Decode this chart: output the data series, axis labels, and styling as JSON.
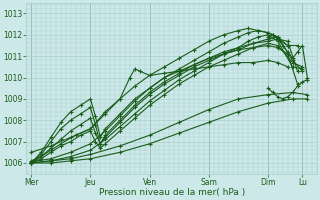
{
  "xlabel": "Pression niveau de la mer( hPa )",
  "ylim": [
    1005.5,
    1013.5
  ],
  "yticks": [
    1006,
    1007,
    1008,
    1009,
    1010,
    1011,
    1012,
    1013
  ],
  "x_days": [
    "Mer",
    "Jeu",
    "Ven",
    "Sam",
    "Dim",
    "Lu"
  ],
  "x_day_positions": [
    0,
    24,
    48,
    72,
    96,
    110
  ],
  "xlim": [
    -2,
    116
  ],
  "bg_color": "#cce8e8",
  "grid_color": "#a8cece",
  "line_color": "#1a5c1a",
  "series": [
    {
      "x": [
        0,
        4,
        8,
        12,
        18,
        24,
        30,
        36,
        42,
        48,
        54,
        60,
        66,
        72,
        78,
        84,
        88,
        92,
        96,
        98,
        100,
        104,
        108
      ],
      "y": [
        1006.1,
        1006.3,
        1006.6,
        1006.9,
        1007.3,
        1007.6,
        1008.4,
        1009.0,
        1009.6,
        1010.1,
        1010.5,
        1010.9,
        1011.3,
        1011.7,
        1012.0,
        1012.2,
        1012.3,
        1012.2,
        1012.1,
        1012.0,
        1011.8,
        1011.5,
        1011.5
      ]
    },
    {
      "x": [
        0,
        8,
        16,
        24,
        30,
        36,
        42,
        48,
        54,
        60,
        66,
        72,
        78,
        84,
        88,
        92,
        96,
        100,
        104
      ],
      "y": [
        1006.05,
        1006.2,
        1006.5,
        1006.9,
        1007.5,
        1008.2,
        1008.9,
        1009.5,
        1010.0,
        1010.4,
        1010.8,
        1011.2,
        1011.6,
        1011.9,
        1012.1,
        1012.2,
        1012.1,
        1011.9,
        1011.5
      ]
    },
    {
      "x": [
        0,
        8,
        16,
        24,
        30,
        36,
        42,
        48,
        54,
        60,
        66,
        72,
        78,
        84,
        88,
        92,
        96,
        100,
        106,
        110
      ],
      "y": [
        1006.0,
        1006.1,
        1006.3,
        1006.6,
        1007.1,
        1007.7,
        1008.3,
        1008.9,
        1009.4,
        1009.9,
        1010.3,
        1010.7,
        1011.1,
        1011.4,
        1011.7,
        1011.9,
        1012.0,
        1011.7,
        1010.5,
        1010.4
      ]
    },
    {
      "x": [
        0,
        4,
        8,
        12,
        16,
        20,
        24,
        26,
        28,
        30,
        36,
        42,
        48,
        54,
        60,
        66,
        72,
        78,
        84,
        90,
        96,
        100,
        106,
        110
      ],
      "y": [
        1006.0,
        1006.2,
        1006.5,
        1006.8,
        1007.0,
        1007.3,
        1007.5,
        1007.0,
        1006.7,
        1006.9,
        1007.5,
        1008.1,
        1008.7,
        1009.2,
        1009.7,
        1010.1,
        1010.5,
        1010.8,
        1011.1,
        1011.4,
        1011.6,
        1011.5,
        1010.7,
        1010.5
      ]
    },
    {
      "x": [
        0,
        4,
        8,
        12,
        16,
        20,
        24,
        26,
        28,
        30,
        36,
        42,
        48,
        54,
        60,
        66,
        72,
        78,
        84,
        90,
        96,
        100,
        106,
        110
      ],
      "y": [
        1006.0,
        1006.3,
        1006.7,
        1007.1,
        1007.5,
        1007.8,
        1008.1,
        1007.4,
        1006.9,
        1007.2,
        1007.9,
        1008.6,
        1009.2,
        1009.7,
        1010.1,
        1010.5,
        1010.8,
        1011.1,
        1011.3,
        1011.6,
        1011.8,
        1011.9,
        1010.8,
        1010.3
      ]
    },
    {
      "x": [
        0,
        4,
        8,
        12,
        16,
        20,
        24,
        26,
        28,
        30,
        36,
        42,
        48,
        54,
        60,
        66,
        72,
        78,
        84,
        90,
        96,
        100,
        104,
        108
      ],
      "y": [
        1006.0,
        1006.4,
        1007.0,
        1007.6,
        1008.0,
        1008.3,
        1008.6,
        1007.8,
        1006.9,
        1007.3,
        1008.0,
        1008.7,
        1009.3,
        1009.8,
        1010.2,
        1010.6,
        1010.9,
        1011.2,
        1011.4,
        1011.6,
        1011.7,
        1011.8,
        1011.7,
        1010.3
      ]
    },
    {
      "x": [
        0,
        4,
        8,
        12,
        16,
        20,
        24,
        26,
        28,
        30,
        36,
        42,
        48,
        54,
        60,
        66,
        72,
        78,
        84,
        90,
        96,
        100,
        104,
        108
      ],
      "y": [
        1006.0,
        1006.5,
        1007.2,
        1007.9,
        1008.4,
        1008.7,
        1009.0,
        1008.2,
        1007.2,
        1007.6,
        1008.3,
        1009.0,
        1009.5,
        1010.0,
        1010.3,
        1010.6,
        1010.9,
        1011.1,
        1011.3,
        1011.4,
        1011.5,
        1011.4,
        1011.1,
        1009.7
      ]
    },
    {
      "x": [
        0,
        8,
        16,
        24,
        36,
        48,
        60,
        72,
        84,
        96,
        106,
        112
      ],
      "y": [
        1006.0,
        1006.1,
        1006.2,
        1006.4,
        1006.8,
        1007.3,
        1007.9,
        1008.5,
        1009.0,
        1009.2,
        1009.3,
        1009.2
      ]
    },
    {
      "x": [
        0,
        8,
        16,
        24,
        36,
        48,
        60,
        72,
        84,
        96,
        106,
        112
      ],
      "y": [
        1006.0,
        1006.0,
        1006.1,
        1006.2,
        1006.5,
        1006.9,
        1007.4,
        1007.9,
        1008.4,
        1008.8,
        1009.0,
        1009.0
      ]
    },
    {
      "x": [
        0,
        8,
        16,
        24,
        30,
        36,
        40,
        42,
        44,
        48,
        54,
        60,
        66,
        72,
        78,
        84,
        90,
        96,
        100,
        104
      ],
      "y": [
        1006.5,
        1006.8,
        1007.2,
        1007.6,
        1008.3,
        1009.0,
        1010.0,
        1010.4,
        1010.3,
        1010.1,
        1010.2,
        1010.3,
        1010.4,
        1010.5,
        1010.6,
        1010.7,
        1010.7,
        1010.8,
        1010.7,
        1010.5
      ]
    },
    {
      "x": [
        96,
        98,
        100,
        102,
        104,
        106,
        108,
        110,
        112
      ],
      "y": [
        1011.9,
        1012.0,
        1011.8,
        1011.5,
        1011.2,
        1010.9,
        1011.2,
        1011.5,
        1010.0
      ]
    },
    {
      "x": [
        96,
        98,
        100,
        102,
        104,
        106,
        108,
        110,
        112
      ],
      "y": [
        1009.5,
        1009.3,
        1009.1,
        1009.0,
        1009.1,
        1009.3,
        1009.6,
        1009.8,
        1009.9
      ]
    }
  ]
}
